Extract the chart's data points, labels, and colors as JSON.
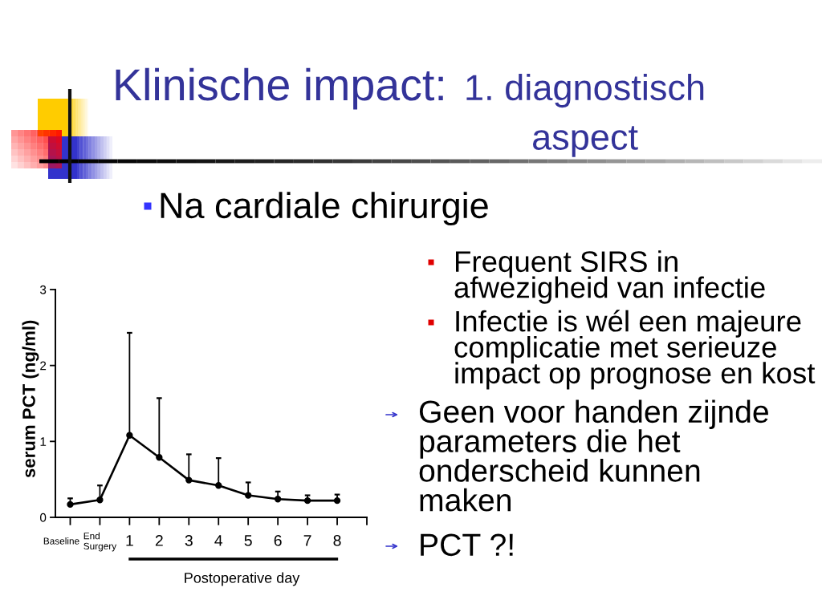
{
  "chart_data": {
    "type": "line",
    "title": "Klinische impact:",
    "subtitle": "1. diagnostisch\naspect",
    "xlabel": "Postoperative day",
    "ylabel": "serum PCT (ng/ml)",
    "annotations": [
      "Na cardiale chirurgie",
      "Frequent SIRS in\nafwezigheid van infectie",
      "Infectie is wél een majeure\ncomplicatie met serieuze\nimpact op prognose en kost",
      "Geen voor handen zijnde\nparameters die het\nonderscheid kunnen\nmaken",
      "PCT ?!"
    ],
    "categories": [
      "Baseline",
      "End\nSurgery",
      "1",
      "2",
      "3",
      "4",
      "5",
      "6",
      "7",
      "8",
      null
    ],
    "series": [
      {
        "color": "#000000",
        "values": [
          0.17,
          0.23,
          1.08,
          0.79,
          0.49,
          0.42,
          0.29,
          0.24,
          0.22,
          0.22,
          null
        ],
        "errors": [
          [
            0.17,
            0.25
          ],
          [
            0.23,
            0.42
          ],
          [
            1.08,
            2.43
          ],
          [
            0.79,
            1.57
          ],
          [
            0.49,
            0.83
          ],
          [
            0.42,
            0.78
          ],
          [
            0.29,
            0.46
          ],
          [
            0.24,
            0.34
          ],
          [
            0.22,
            0.29
          ],
          [
            0.22,
            0.3
          ],
          null
        ]
      }
    ],
    "ylim": [
      0,
      3
    ],
    "yticks": [
      0,
      1,
      2,
      3
    ],
    "marker": "circle",
    "line_style": "solid"
  }
}
